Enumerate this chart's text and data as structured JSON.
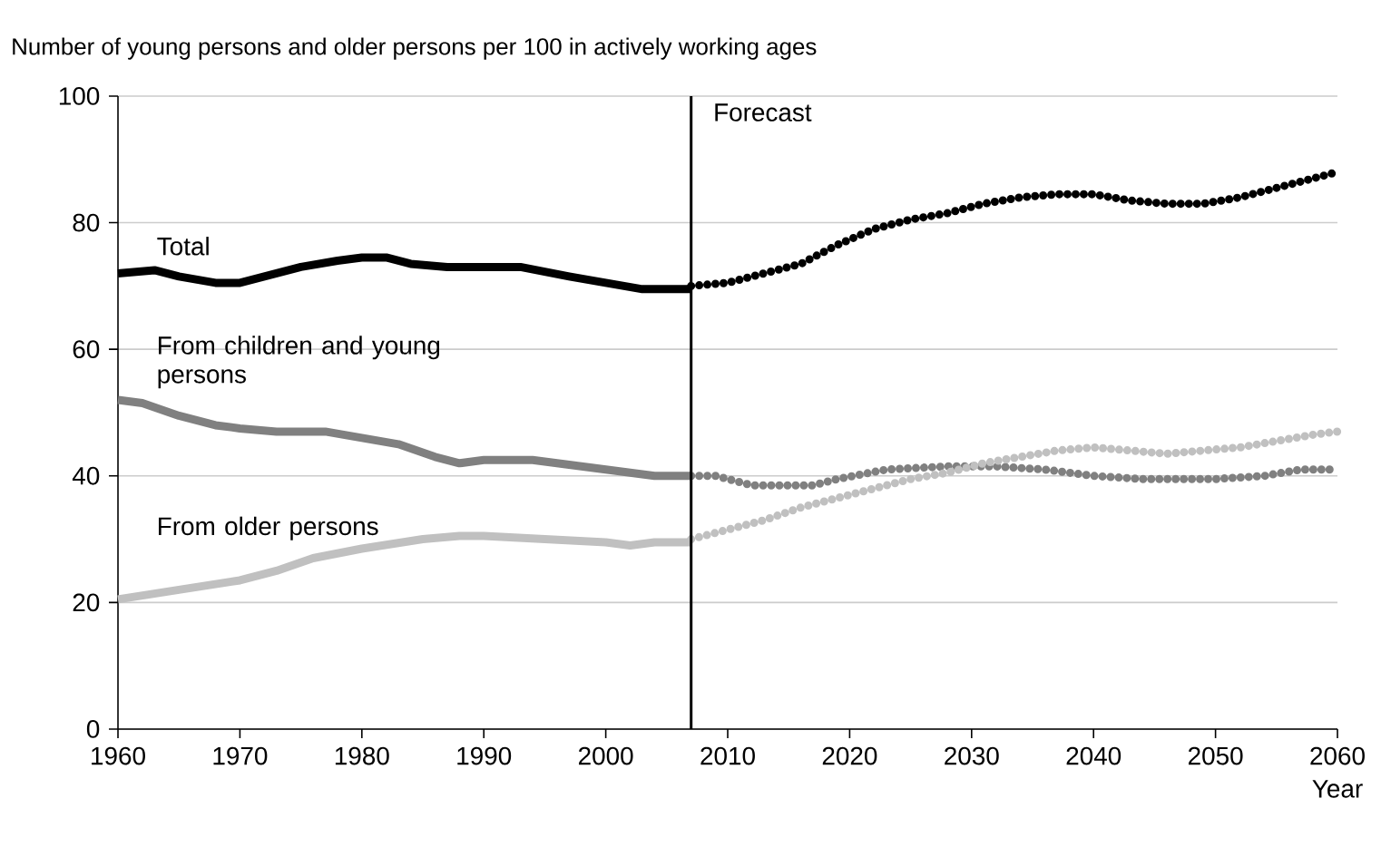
{
  "chart_data": {
    "type": "line",
    "title": "Number of young persons and older persons per 100 in actively working ages",
    "xlabel": "Year",
    "xlim": [
      1960,
      2060
    ],
    "xticks": [
      1960,
      1970,
      1980,
      1990,
      2000,
      2010,
      2020,
      2030,
      2040,
      2050,
      2060
    ],
    "ylim": [
      0,
      100
    ],
    "yticks": [
      0,
      20,
      40,
      60,
      80,
      100
    ],
    "grid": "y",
    "ref_lines": [
      {
        "axis": "x",
        "value": 2007,
        "label": "Forecast",
        "color": "#000000"
      }
    ],
    "series": [
      {
        "name": "Total",
        "color": "#000000",
        "line_style": "solid",
        "x": [
          1960,
          1963,
          1965,
          1968,
          1970,
          1972,
          1975,
          1978,
          1980,
          1982,
          1984,
          1987,
          1990,
          1993,
          1997,
          2000,
          2003,
          2007
        ],
        "values": [
          72,
          72.5,
          71.5,
          70.5,
          70.5,
          71.5,
          73,
          74,
          74.5,
          74.5,
          73.5,
          73,
          73,
          73,
          71.5,
          70.5,
          69.5,
          69.5
        ]
      },
      {
        "name": "From children and young persons",
        "color": "#808080",
        "line_style": "solid",
        "x": [
          1960,
          1962,
          1965,
          1968,
          1970,
          1973,
          1977,
          1980,
          1983,
          1986,
          1988,
          1990,
          1994,
          1998,
          2002,
          2004,
          2007
        ],
        "values": [
          52,
          51.5,
          49.5,
          48,
          47.5,
          47,
          47,
          46,
          45,
          43,
          42,
          42.5,
          42.5,
          41.5,
          40.5,
          40,
          40
        ]
      },
      {
        "name": "From older persons",
        "color": "#c0c0c0",
        "line_style": "solid",
        "x": [
          1960,
          1965,
          1970,
          1973,
          1976,
          1980,
          1985,
          1988,
          1990,
          1995,
          2000,
          2002,
          2004,
          2007
        ],
        "values": [
          20.5,
          22,
          23.5,
          25,
          27,
          28.5,
          30,
          30.5,
          30.5,
          30,
          29.5,
          29,
          29.5,
          29.5
        ]
      },
      {
        "color": "#000000",
        "line_style": "dotted",
        "x": [
          2007,
          2010,
          2013,
          2016,
          2019,
          2022,
          2025,
          2028,
          2031,
          2034,
          2037,
          2040,
          2043,
          2046,
          2049,
          2052,
          2055,
          2058,
          2060
        ],
        "values": [
          70,
          70.5,
          72,
          73.5,
          76.5,
          79,
          80.5,
          81.5,
          83,
          84,
          84.5,
          84.5,
          83.5,
          83,
          83,
          84,
          85.5,
          87,
          88
        ]
      },
      {
        "color": "#808080",
        "line_style": "dotted",
        "x": [
          2007,
          2009,
          2012,
          2017,
          2019,
          2023,
          2028,
          2032,
          2036,
          2040,
          2044,
          2050,
          2054,
          2057,
          2060
        ],
        "values": [
          40,
          40,
          38.5,
          38.5,
          39.5,
          41,
          41.5,
          41.5,
          41,
          40,
          39.5,
          39.5,
          40,
          41,
          41
        ]
      },
      {
        "color": "#c0c0c0",
        "line_style": "dotted",
        "x": [
          2007,
          2010,
          2013,
          2016,
          2019,
          2022,
          2025,
          2028,
          2031,
          2034,
          2037,
          2040,
          2043,
          2046,
          2049,
          2052,
          2055,
          2058,
          2060
        ],
        "values": [
          30,
          31.5,
          33,
          35,
          36.5,
          38,
          39.5,
          40.5,
          42,
          43,
          44,
          44.5,
          44,
          43.5,
          44,
          44.5,
          45.5,
          46.5,
          47
        ]
      }
    ]
  }
}
